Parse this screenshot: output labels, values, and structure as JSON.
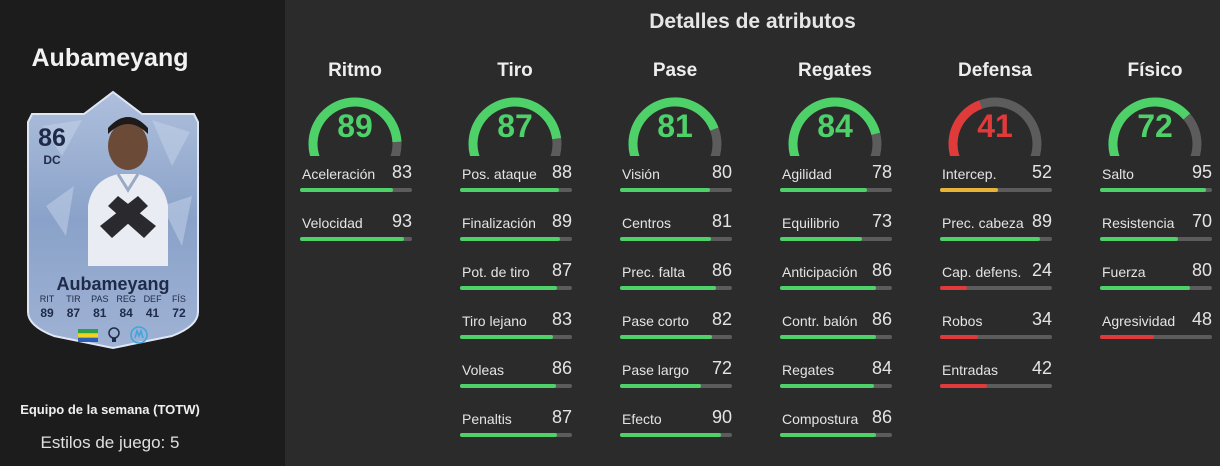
{
  "left": {
    "player_name": "Aubameyang",
    "card": {
      "rating": "86",
      "position": "DC",
      "name": "Aubameyang",
      "stats": [
        {
          "label": "RIT",
          "value": "89"
        },
        {
          "label": "TIR",
          "value": "87"
        },
        {
          "label": "PAS",
          "value": "81"
        },
        {
          "label": "REG",
          "value": "84"
        },
        {
          "label": "DEF",
          "value": "41"
        },
        {
          "label": "FÍS",
          "value": "72"
        }
      ]
    },
    "team_label": "Equipo de la semana (TOTW)",
    "playstyles": "Estilos de juego: 5"
  },
  "title": "Detalles de atributos",
  "colors": {
    "high": "#4fd16a",
    "mid": "#e8b339",
    "low": "#e03a3a",
    "track": "#5c5c5c"
  },
  "categories": [
    {
      "name": "Ritmo",
      "value": 89,
      "attributes": [
        {
          "name": "Aceleración",
          "value": 83
        },
        {
          "name": "Velocidad",
          "value": 93
        }
      ]
    },
    {
      "name": "Tiro",
      "value": 87,
      "attributes": [
        {
          "name": "Pos. ataque",
          "value": 88
        },
        {
          "name": "Finalización",
          "value": 89
        },
        {
          "name": "Pot. de tiro",
          "value": 87
        },
        {
          "name": "Tiro lejano",
          "value": 83
        },
        {
          "name": "Voleas",
          "value": 86
        },
        {
          "name": "Penaltis",
          "value": 87
        }
      ]
    },
    {
      "name": "Pase",
      "value": 81,
      "attributes": [
        {
          "name": "Visión",
          "value": 80
        },
        {
          "name": "Centros",
          "value": 81
        },
        {
          "name": "Prec. falta",
          "value": 86
        },
        {
          "name": "Pase corto",
          "value": 82
        },
        {
          "name": "Pase largo",
          "value": 72
        },
        {
          "name": "Efecto",
          "value": 90
        }
      ]
    },
    {
      "name": "Regates",
      "value": 84,
      "attributes": [
        {
          "name": "Agilidad",
          "value": 78
        },
        {
          "name": "Equilibrio",
          "value": 73
        },
        {
          "name": "Anticipación",
          "value": 86
        },
        {
          "name": "Contr. balón",
          "value": 86
        },
        {
          "name": "Regates",
          "value": 84
        },
        {
          "name": "Compostura",
          "value": 86
        }
      ]
    },
    {
      "name": "Defensa",
      "value": 41,
      "attributes": [
        {
          "name": "Intercep.",
          "value": 52
        },
        {
          "name": "Prec. cabeza",
          "value": 89
        },
        {
          "name": "Cap. defens.",
          "value": 24
        },
        {
          "name": "Robos",
          "value": 34
        },
        {
          "name": "Entradas",
          "value": 42
        }
      ]
    },
    {
      "name": "Físico",
      "value": 72,
      "attributes": [
        {
          "name": "Salto",
          "value": 95
        },
        {
          "name": "Resistencia",
          "value": 70
        },
        {
          "name": "Fuerza",
          "value": 80
        },
        {
          "name": "Agresividad",
          "value": 48
        }
      ]
    }
  ]
}
